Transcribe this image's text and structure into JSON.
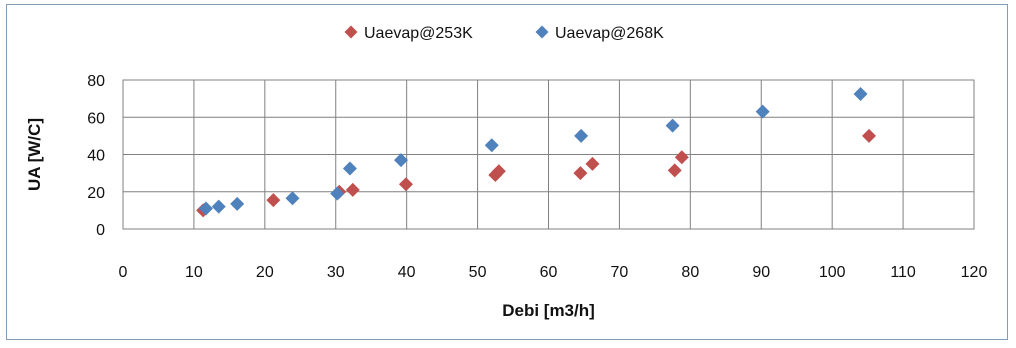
{
  "chart_data": {
    "type": "scatter",
    "xlabel": "Debi [m3/h]",
    "ylabel": "UA [W/C]",
    "xlim": [
      0,
      120
    ],
    "ylim": [
      0,
      80
    ],
    "xticks": [
      0,
      10,
      20,
      30,
      40,
      50,
      60,
      70,
      80,
      90,
      100,
      110,
      120
    ],
    "yticks": [
      0,
      20,
      40,
      60,
      80
    ],
    "grid": true,
    "legend_position": "top-center",
    "series": [
      {
        "name": "Uaevap@253K",
        "color": "#c0504d",
        "marker": "diamond",
        "points": [
          [
            11.3,
            10
          ],
          [
            21.2,
            15.5
          ],
          [
            30.5,
            20
          ],
          [
            32.4,
            21
          ],
          [
            39.9,
            24
          ],
          [
            52.5,
            29
          ],
          [
            53.0,
            31
          ],
          [
            64.5,
            30
          ],
          [
            66.2,
            35
          ],
          [
            77.8,
            31.5
          ],
          [
            78.8,
            38.5
          ],
          [
            105.2,
            50
          ]
        ]
      },
      {
        "name": "Uaevap@268K",
        "color": "#4f81bd",
        "marker": "diamond",
        "points": [
          [
            11.7,
            11
          ],
          [
            13.5,
            12
          ],
          [
            16.1,
            13.5
          ],
          [
            23.9,
            16.5
          ],
          [
            30.2,
            19
          ],
          [
            32.0,
            32.5
          ],
          [
            39.2,
            37
          ],
          [
            52.0,
            45
          ],
          [
            64.6,
            50
          ],
          [
            77.5,
            55.5
          ],
          [
            90.2,
            63
          ],
          [
            104.0,
            72.5
          ]
        ]
      }
    ]
  }
}
